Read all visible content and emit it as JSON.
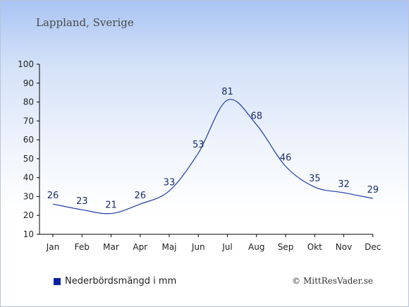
{
  "header": {
    "title": "Lappland, Sverige"
  },
  "legend": {
    "label": "Nederbördsmängd i mm"
  },
  "footer": {
    "credit": "© MittResVader.se"
  },
  "colors": {
    "line": "#1f3fa6",
    "legend_swatch": "#0a22a0",
    "label": "#1c2e6b"
  },
  "chart_data": {
    "type": "line",
    "categories": [
      "Jan",
      "Feb",
      "Mar",
      "Apr",
      "Maj",
      "Jun",
      "Jul",
      "Aug",
      "Sep",
      "Okt",
      "Nov",
      "Dec"
    ],
    "series": [
      {
        "name": "Nederbördsmängd i mm",
        "values": [
          26,
          23,
          21,
          26,
          33,
          53,
          81,
          68,
          46,
          35,
          32,
          29
        ]
      }
    ],
    "ylim": [
      10,
      100
    ],
    "yticks": [
      10,
      20,
      30,
      40,
      50,
      60,
      70,
      80,
      90,
      100
    ],
    "title": "Lappland, Sverige",
    "xlabel": "",
    "ylabel": "",
    "grid": false,
    "legend_position": "bottom-left"
  }
}
